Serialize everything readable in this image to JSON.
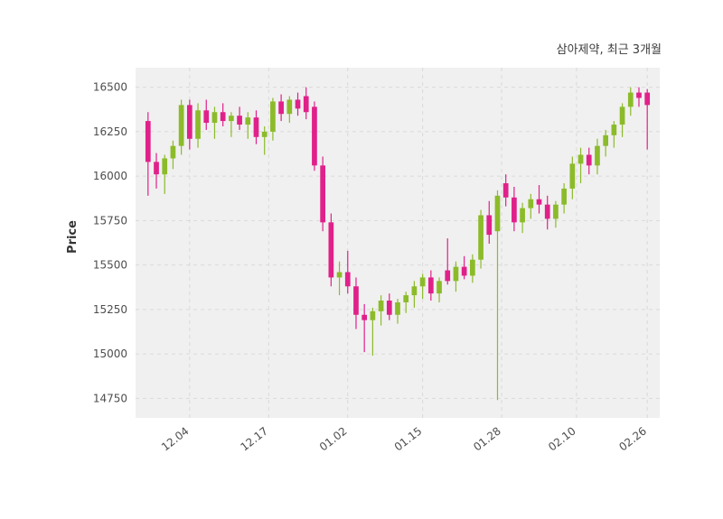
{
  "title": "삼아제약, 최근 3개월",
  "ylabel": "Price",
  "chart_data": {
    "type": "candlestick",
    "title": "삼아제약, 최근 3개월",
    "ylabel": "Price",
    "legend_position": "none",
    "grid": "dashed",
    "plot_bg_color": "#f0f0f0",
    "grid_color": "#d9d9d9",
    "up_color": "#8cbb2a",
    "down_color": "#e0218a",
    "ylim": [
      14640,
      16610
    ],
    "yticks": [
      14750,
      15000,
      15250,
      15500,
      15750,
      16000,
      16250,
      16500
    ],
    "xticks": [
      {
        "label": "12.04",
        "index": 5
      },
      {
        "label": "12.17",
        "index": 14.5
      },
      {
        "label": "01.02",
        "index": 24
      },
      {
        "label": "01.15",
        "index": 33
      },
      {
        "label": "01.28",
        "index": 42.5
      },
      {
        "label": "02.10",
        "index": 51.5
      },
      {
        "label": "02.26",
        "index": 60
      }
    ],
    "candles_format": [
      "date",
      "open",
      "high",
      "low",
      "close"
    ],
    "candles": [
      [
        "11.27",
        16310,
        16360,
        15890,
        16080
      ],
      [
        "11.28",
        16080,
        16130,
        15930,
        16010
      ],
      [
        "11.29",
        16010,
        16120,
        15900,
        16100
      ],
      [
        "11.30",
        16100,
        16200,
        16040,
        16170
      ],
      [
        "12.01",
        16170,
        16430,
        16120,
        16400
      ],
      [
        "12.04",
        16400,
        16430,
        16150,
        16210
      ],
      [
        "12.05",
        16210,
        16410,
        16160,
        16370
      ],
      [
        "12.06",
        16370,
        16430,
        16260,
        16300
      ],
      [
        "12.07",
        16300,
        16390,
        16210,
        16360
      ],
      [
        "12.08",
        16360,
        16410,
        16280,
        16310
      ],
      [
        "12.11",
        16310,
        16360,
        16220,
        16340
      ],
      [
        "12.12",
        16340,
        16390,
        16260,
        16290
      ],
      [
        "12.13",
        16290,
        16360,
        16210,
        16330
      ],
      [
        "12.14",
        16330,
        16370,
        16180,
        16220
      ],
      [
        "12.15",
        16220,
        16280,
        16120,
        16250
      ],
      [
        "12.18",
        16250,
        16440,
        16200,
        16420
      ],
      [
        "12.19",
        16420,
        16460,
        16310,
        16350
      ],
      [
        "12.20",
        16350,
        16450,
        16300,
        16430
      ],
      [
        "12.21",
        16430,
        16470,
        16340,
        16380
      ],
      [
        "12.22",
        16450,
        16500,
        16320,
        16360
      ],
      [
        "12.26",
        16390,
        16420,
        16030,
        16060
      ],
      [
        "12.27",
        16060,
        16110,
        15690,
        15740
      ],
      [
        "12.28",
        15740,
        15790,
        15380,
        15430
      ],
      [
        "12.29",
        15430,
        15520,
        15330,
        15460
      ],
      [
        "01.02",
        15460,
        15580,
        15340,
        15380
      ],
      [
        "01.03",
        15380,
        15430,
        15140,
        15220
      ],
      [
        "01.04",
        15220,
        15280,
        15010,
        15190
      ],
      [
        "01.05",
        15190,
        15260,
        14990,
        15240
      ],
      [
        "01.08",
        15240,
        15330,
        15160,
        15300
      ],
      [
        "01.09",
        15300,
        15340,
        15190,
        15220
      ],
      [
        "01.10",
        15220,
        15310,
        15170,
        15290
      ],
      [
        "01.11",
        15290,
        15350,
        15230,
        15330
      ],
      [
        "01.12",
        15330,
        15410,
        15260,
        15380
      ],
      [
        "01.15",
        15380,
        15450,
        15310,
        15430
      ],
      [
        "01.16",
        15430,
        15470,
        15300,
        15340
      ],
      [
        "01.17",
        15340,
        15430,
        15290,
        15410
      ],
      [
        "01.18",
        15470,
        15650,
        15390,
        15410
      ],
      [
        "01.19",
        15410,
        15520,
        15350,
        15490
      ],
      [
        "01.22",
        15490,
        15550,
        15420,
        15440
      ],
      [
        "01.23",
        15440,
        15560,
        15400,
        15530
      ],
      [
        "01.24",
        15530,
        15810,
        15480,
        15780
      ],
      [
        "01.25",
        15780,
        15860,
        15620,
        15670
      ],
      [
        "01.26",
        15690,
        15920,
        14740,
        15890
      ],
      [
        "01.29",
        15960,
        16010,
        15830,
        15880
      ],
      [
        "01.30",
        15880,
        15940,
        15690,
        15740
      ],
      [
        "01.31",
        15740,
        15850,
        15680,
        15820
      ],
      [
        "02.01",
        15820,
        15900,
        15760,
        15870
      ],
      [
        "02.02",
        15870,
        15950,
        15790,
        15840
      ],
      [
        "02.05",
        15840,
        15890,
        15700,
        15760
      ],
      [
        "02.06",
        15760,
        15860,
        15710,
        15840
      ],
      [
        "02.07",
        15840,
        15960,
        15790,
        15930
      ],
      [
        "02.08",
        15930,
        16110,
        15870,
        16070
      ],
      [
        "02.13",
        16070,
        16160,
        15960,
        16120
      ],
      [
        "02.14",
        16120,
        16160,
        16010,
        16060
      ],
      [
        "02.15",
        16060,
        16210,
        16010,
        16170
      ],
      [
        "02.16",
        16170,
        16260,
        16110,
        16230
      ],
      [
        "02.19",
        16230,
        16310,
        16160,
        16290
      ],
      [
        "02.20",
        16290,
        16410,
        16220,
        16390
      ],
      [
        "02.21",
        16390,
        16500,
        16340,
        16470
      ],
      [
        "02.22",
        16470,
        16500,
        16390,
        16440
      ],
      [
        "02.26",
        16470,
        16490,
        16150,
        16400
      ]
    ]
  }
}
